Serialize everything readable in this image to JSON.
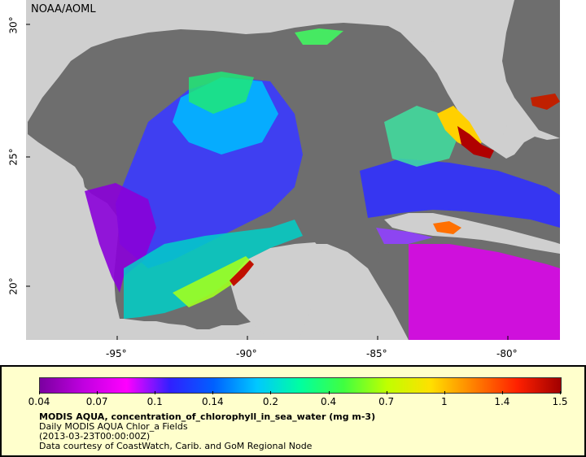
{
  "map": {
    "credit": "NOAA/AOML",
    "ocean_color": "#6e6e6e",
    "land_color": "#cfcfcf",
    "lat_labels": [
      {
        "value": "30°"
      },
      {
        "value": "25°"
      },
      {
        "value": "20°"
      }
    ],
    "lon_labels": [
      {
        "value": "-95°"
      },
      {
        "value": "-90°"
      },
      {
        "value": "-85°"
      },
      {
        "value": "-80°"
      }
    ]
  },
  "legend": {
    "colorbar_colors": [
      "#7a00a0",
      "#c000e0",
      "#ff00ff",
      "#3020ff",
      "#0060ff",
      "#00c8ff",
      "#00ffa0",
      "#40ff40",
      "#c0ff00",
      "#ffe000",
      "#ff8000",
      "#ff2000",
      "#a00000"
    ],
    "ticks": [
      "0.04",
      "0.07",
      "0.1",
      "0.14",
      "0.2",
      "0.4",
      "0.7",
      "1",
      "1.4",
      "1.5"
    ],
    "title": "MODIS AQUA, concentration_of_chlorophyll_in_sea_water (mg m-3)",
    "line1": "Daily MODIS AQUA Chlor_a Fields",
    "line2": "(2013-03-23T00:00:00Z)",
    "line3": "Data courtesy of CoastWatch, Carib. and GoM Regional Node"
  }
}
